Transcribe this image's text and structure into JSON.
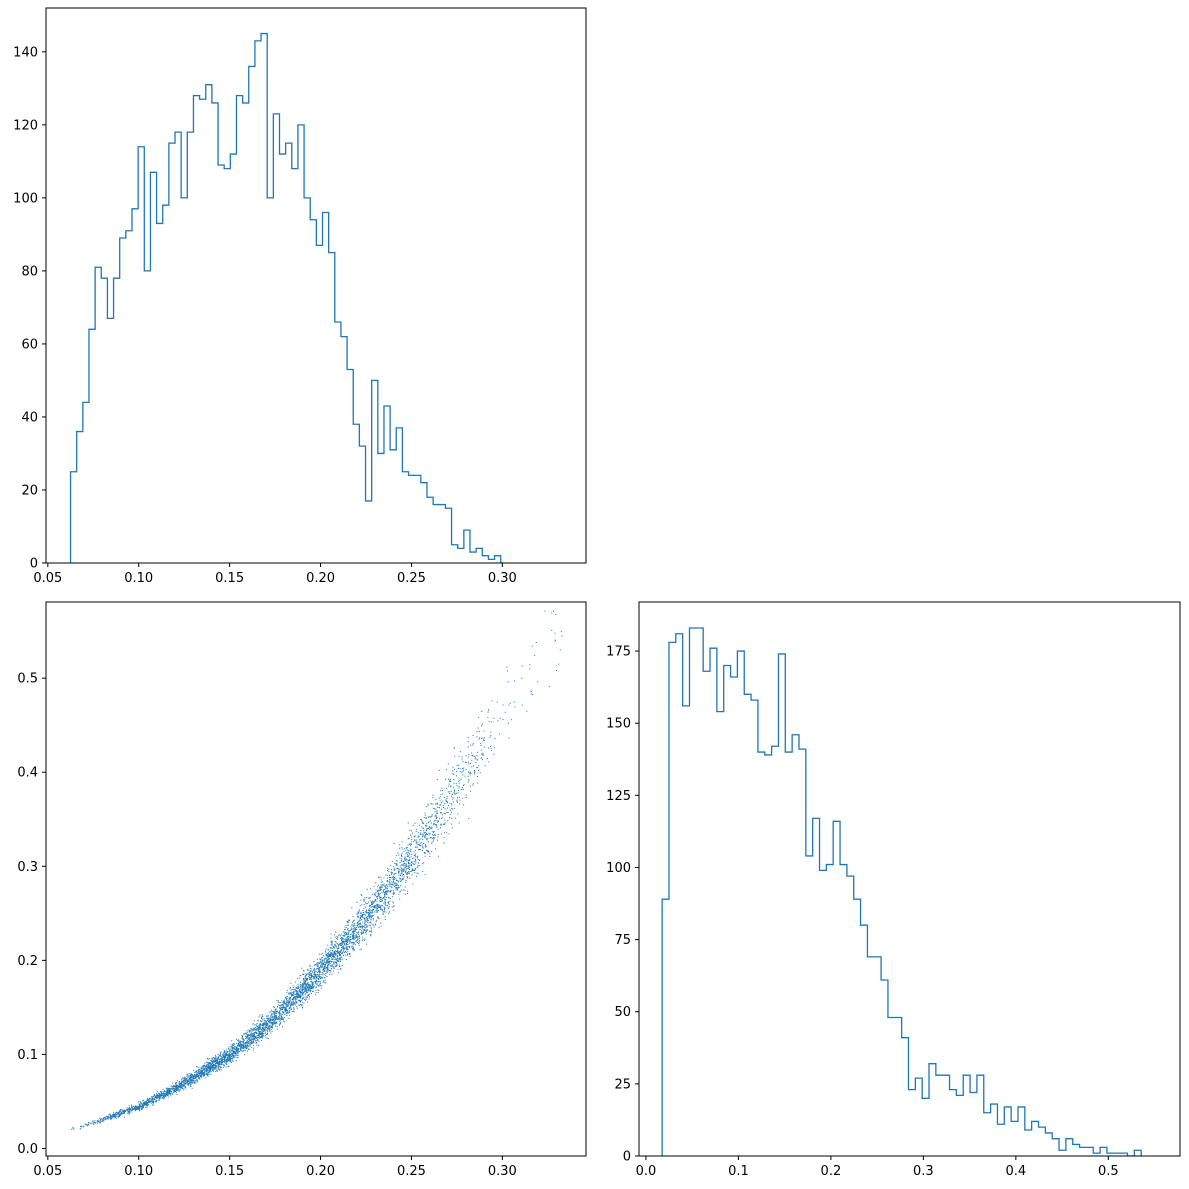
{
  "colors": {
    "series": "#1f77b4",
    "axes": "#000000",
    "background": "#ffffff"
  },
  "chart_data": [
    {
      "id": "hist-top",
      "type": "histogram",
      "title": "",
      "xlabel": "",
      "ylabel": "",
      "histtype": "step",
      "xlim": [
        0.049,
        0.346
      ],
      "ylim": [
        0,
        152
      ],
      "xticks": [
        0.05,
        0.1,
        0.15,
        0.2,
        0.25,
        0.3
      ],
      "xtick_labels": [
        "0.05",
        "0.10",
        "0.15",
        "0.20",
        "0.25",
        "0.30"
      ],
      "yticks": [
        0,
        20,
        40,
        60,
        80,
        100,
        120,
        140
      ],
      "ytick_labels": [
        "0",
        "20",
        "40",
        "60",
        "80",
        "100",
        "120",
        "140"
      ],
      "bin_start": 0.0625,
      "bin_width": 0.00338,
      "counts": [
        25,
        36,
        44,
        64,
        81,
        78,
        67,
        78,
        89,
        91,
        97,
        114,
        80,
        107,
        93,
        98,
        115,
        118,
        100,
        118,
        128,
        127,
        131,
        126,
        109,
        108,
        112,
        128,
        126,
        136,
        143,
        145,
        100,
        123,
        112,
        115,
        108,
        120,
        100,
        94,
        87,
        96,
        85,
        66,
        62,
        53,
        38,
        32,
        17,
        50,
        30,
        43,
        31,
        37,
        25,
        24,
        24,
        22,
        18,
        16,
        16,
        15,
        5,
        4,
        9,
        3,
        4,
        2,
        1,
        2
      ],
      "grid": false,
      "legend": "none"
    },
    {
      "id": "scatter",
      "type": "scatter",
      "title": "",
      "xlabel": "",
      "ylabel": "",
      "xlim": [
        0.049,
        0.346
      ],
      "ylim": [
        -0.008,
        0.581
      ],
      "xticks": [
        0.05,
        0.1,
        0.15,
        0.2,
        0.25,
        0.3
      ],
      "xtick_labels": [
        "0.05",
        "0.10",
        "0.15",
        "0.20",
        "0.25",
        "0.30"
      ],
      "yticks": [
        0.0,
        0.1,
        0.2,
        0.3,
        0.4,
        0.5
      ],
      "ytick_labels": [
        "0.0",
        "0.1",
        "0.2",
        "0.3",
        "0.4",
        "0.5"
      ],
      "marker": "pixel",
      "curve_description": "band following y ≈ 4.9·x^1.89",
      "curve_points": [
        [
          0.0625,
          0.021
        ],
        [
          0.075,
          0.028
        ],
        [
          0.1,
          0.045
        ],
        [
          0.125,
          0.07
        ],
        [
          0.15,
          0.1
        ],
        [
          0.175,
          0.14
        ],
        [
          0.2,
          0.19
        ],
        [
          0.225,
          0.245
        ],
        [
          0.25,
          0.31
        ],
        [
          0.275,
          0.385
        ],
        [
          0.3,
          0.46
        ],
        [
          0.333,
          0.555
        ]
      ],
      "n_points": 5000,
      "grid": false,
      "legend": "none"
    },
    {
      "id": "hist-bottom-right",
      "type": "histogram",
      "title": "",
      "xlabel": "",
      "ylabel": "",
      "histtype": "step",
      "xlim": [
        -0.0075,
        0.5775
      ],
      "ylim": [
        0,
        192
      ],
      "xticks": [
        0.0,
        0.1,
        0.2,
        0.3,
        0.4,
        0.5
      ],
      "xtick_labels": [
        "0.0",
        "0.1",
        "0.2",
        "0.3",
        "0.4",
        "0.5"
      ],
      "yticks": [
        0,
        25,
        50,
        75,
        100,
        125,
        150,
        175
      ],
      "ytick_labels": [
        "0",
        "25",
        "50",
        "75",
        "100",
        "125",
        "150",
        "175"
      ],
      "bin_start": 0.0175,
      "bin_width": 0.0074,
      "counts": [
        89,
        178,
        181,
        156,
        183,
        183,
        168,
        176,
        154,
        170,
        166,
        175,
        160,
        158,
        140,
        139,
        142,
        174,
        140,
        146,
        141,
        104,
        117,
        99,
        101,
        116,
        101,
        97,
        89,
        80,
        69,
        69,
        61,
        48,
        48,
        41,
        23,
        27,
        20,
        32,
        28,
        28,
        23,
        21,
        28,
        22,
        28,
        15,
        18,
        11,
        17,
        12,
        17,
        9,
        12,
        10,
        8,
        6,
        2,
        6,
        4,
        3,
        3,
        1,
        3,
        1,
        1,
        1,
        0,
        2
      ],
      "grid": false,
      "legend": "none"
    }
  ]
}
